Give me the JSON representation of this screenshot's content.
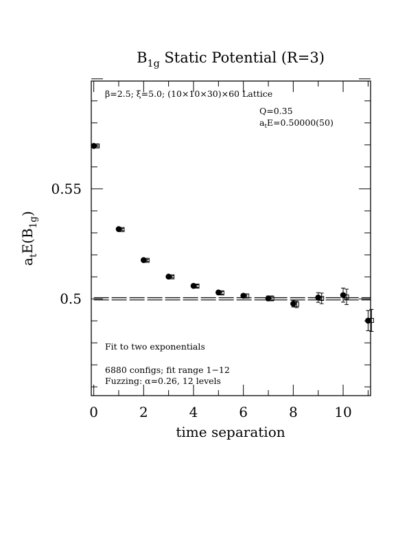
{
  "chart_data": {
    "type": "scatter",
    "title": {
      "main": "B",
      "sub": "1g",
      "rest": " Static Potential (R=3)"
    },
    "xlabel": "time separation",
    "ylabel": {
      "pre": "a",
      "pre_sub": "t",
      "mid": "E(B",
      "mid_sub": "1g",
      "post": ")"
    },
    "xlim": [
      -0.1,
      11.1
    ],
    "ylim": [
      0.456,
      0.599
    ],
    "x_ticks": [
      0,
      2,
      4,
      6,
      8,
      10
    ],
    "x_tick_labels": [
      "0",
      "2",
      "4",
      "6",
      "8",
      "10"
    ],
    "y_ticks": [
      0.5,
      0.55
    ],
    "y_tick_labels": [
      "0.5",
      "0.55"
    ],
    "annotations": {
      "lattice": "β=2.5; ξ=5.0; (10×10×30)×60 Lattice",
      "q": "Q=0.35",
      "ate_pre": "a",
      "ate_sub": "t",
      "ate_rest": "E=0.50000(50)",
      "fit": "Fit to two exponentials",
      "configs": "6880 configs; fit range 1−12",
      "fuzzing": "Fuzzing: α=0.26, 12 levels"
    },
    "fit": {
      "value": 0.5,
      "error": 0.0005,
      "x_range": [
        0,
        11.1
      ]
    },
    "series": [
      {
        "marker": "filled-circle",
        "points": [
          {
            "x": 0,
            "y": 0.5695,
            "err": 0.0004
          },
          {
            "x": 1,
            "y": 0.5317,
            "err": 0.0005
          },
          {
            "x": 2,
            "y": 0.5176,
            "err": 0.0005
          },
          {
            "x": 3,
            "y": 0.5101,
            "err": 0.0005
          },
          {
            "x": 4,
            "y": 0.5059,
            "err": 0.0006
          },
          {
            "x": 5,
            "y": 0.5029,
            "err": 0.0007
          },
          {
            "x": 6,
            "y": 0.5014,
            "err": 0.0009
          },
          {
            "x": 7,
            "y": 0.5002,
            "err": 0.0011
          },
          {
            "x": 8,
            "y": 0.4978,
            "err": 0.0015
          },
          {
            "x": 9,
            "y": 0.5006,
            "err": 0.0022
          },
          {
            "x": 10,
            "y": 0.5017,
            "err": 0.0032
          },
          {
            "x": 11,
            "y": 0.4901,
            "err": 0.0046
          }
        ]
      },
      {
        "marker": "open-square",
        "points": [
          {
            "x": 0,
            "y": 0.5695,
            "err": 0.0004
          },
          {
            "x": 1,
            "y": 0.5315,
            "err": 0.0005
          },
          {
            "x": 2,
            "y": 0.5175,
            "err": 0.0005
          },
          {
            "x": 3,
            "y": 0.51,
            "err": 0.0005
          },
          {
            "x": 4,
            "y": 0.5058,
            "err": 0.0006
          },
          {
            "x": 5,
            "y": 0.5027,
            "err": 0.0007
          },
          {
            "x": 6,
            "y": 0.5013,
            "err": 0.0009
          },
          {
            "x": 7,
            "y": 0.5002,
            "err": 0.0011
          },
          {
            "x": 8,
            "y": 0.4975,
            "err": 0.0015
          },
          {
            "x": 9,
            "y": 0.5002,
            "err": 0.0024
          },
          {
            "x": 10,
            "y": 0.5009,
            "err": 0.0035
          },
          {
            "x": 11,
            "y": 0.4902,
            "err": 0.005
          }
        ]
      }
    ],
    "grid": false,
    "legend": "none"
  }
}
